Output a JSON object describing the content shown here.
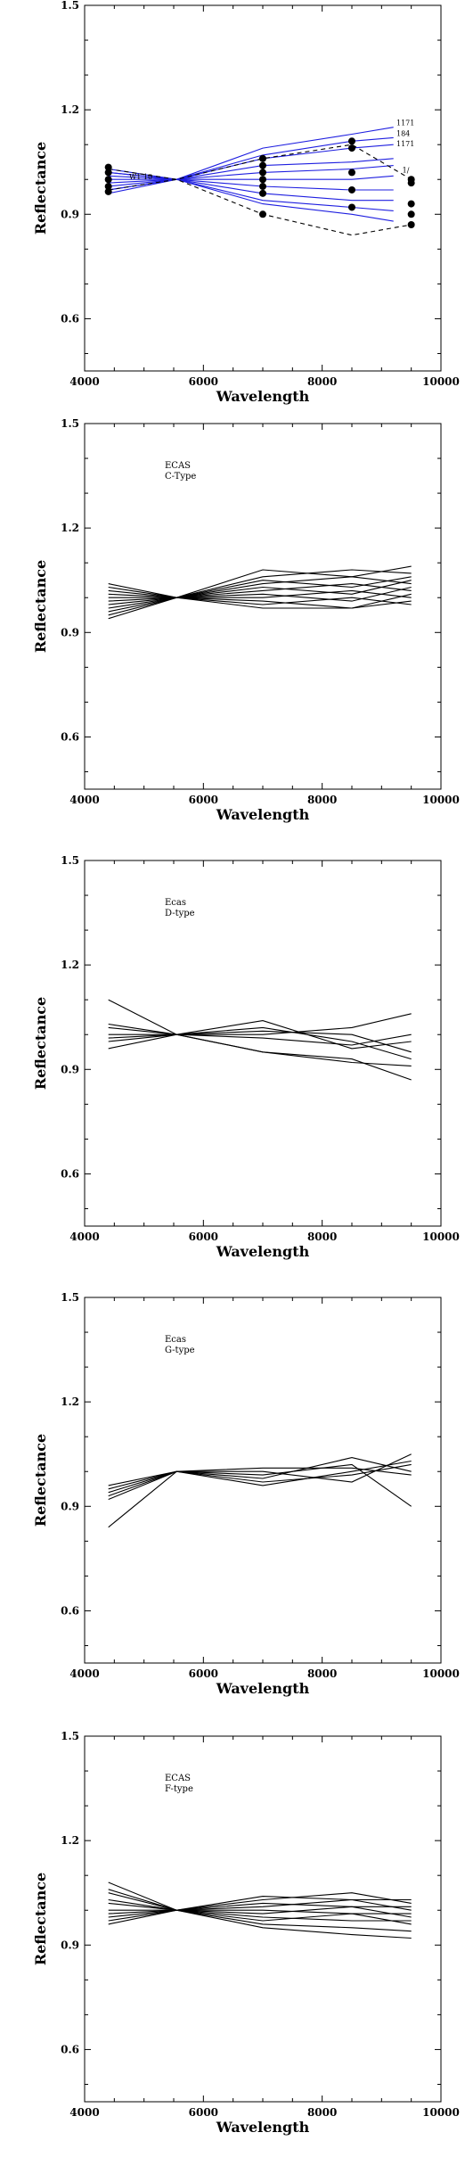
{
  "chart_data": [
    {
      "type": "line",
      "title": "",
      "xlabel": "Wavelength",
      "ylabel": "Reflectance",
      "xlim": [
        4000,
        10000
      ],
      "ylim": [
        0.45,
        1.5
      ],
      "xticks": [
        4000,
        6000,
        8000,
        10000
      ],
      "yticks": [
        0.6,
        0.9,
        1.2,
        1.5
      ],
      "ytick_labels": [
        "0.6",
        "0.9",
        "1.2",
        "1.5"
      ],
      "line_color": "#1f1fe0",
      "grid": false,
      "annotations": [
        {
          "text": "1171",
          "x": 9250,
          "y": 1.155
        },
        {
          "text": "184",
          "x": 9250,
          "y": 1.125
        },
        {
          "text": "1171",
          "x": 9250,
          "y": 1.095
        },
        {
          "text": "W1 10",
          "x": 4750,
          "y": 1.0
        },
        {
          "text": "1/",
          "x": 9350,
          "y": 1.02
        }
      ],
      "series": [
        {
          "x": [
            4400,
            5550,
            7000,
            8500,
            9200
          ],
          "values": [
            1.03,
            1.0,
            1.09,
            1.13,
            1.15
          ]
        },
        {
          "x": [
            4400,
            5550,
            7000,
            8500,
            9200
          ],
          "values": [
            1.02,
            1.0,
            1.07,
            1.11,
            1.12
          ]
        },
        {
          "x": [
            4400,
            5550,
            7000,
            8500,
            9200
          ],
          "values": [
            1.02,
            1.0,
            1.06,
            1.09,
            1.1
          ]
        },
        {
          "x": [
            4400,
            5550,
            7000,
            8500,
            9200
          ],
          "values": [
            1.01,
            1.0,
            1.04,
            1.05,
            1.06
          ]
        },
        {
          "x": [
            4400,
            5550,
            7000,
            8500,
            9200
          ],
          "values": [
            1.0,
            1.0,
            1.02,
            1.03,
            1.04
          ]
        },
        {
          "x": [
            4400,
            5550,
            7000,
            8500,
            9200
          ],
          "values": [
            0.99,
            1.0,
            1.0,
            1.0,
            1.01
          ]
        },
        {
          "x": [
            4400,
            5550,
            7000,
            8500,
            9200
          ],
          "values": [
            0.98,
            1.0,
            0.98,
            0.97,
            0.97
          ]
        },
        {
          "x": [
            4400,
            5550,
            7000,
            8500,
            9200
          ],
          "values": [
            0.97,
            1.0,
            0.96,
            0.94,
            0.94
          ]
        },
        {
          "x": [
            4400,
            5550,
            7000,
            8500,
            9200
          ],
          "values": [
            0.97,
            1.0,
            0.94,
            0.92,
            0.91
          ]
        },
        {
          "x": [
            4400,
            5550,
            7000,
            8500,
            9200
          ],
          "values": [
            0.96,
            1.0,
            0.93,
            0.9,
            0.88
          ]
        }
      ],
      "dashed_series": [
        {
          "x": [
            4400,
            5550,
            7000,
            8500,
            9500
          ],
          "values": [
            1.03,
            1.0,
            1.06,
            1.1,
            1.0
          ]
        },
        {
          "x": [
            4400,
            5550,
            7000,
            8500,
            9500
          ],
          "values": [
            0.97,
            1.0,
            0.9,
            0.84,
            0.87
          ]
        }
      ],
      "points": {
        "x": [
          4400,
          4400,
          4400,
          4400,
          4400,
          7000,
          7000,
          7000,
          7000,
          7000,
          7000,
          7000,
          8500,
          8500,
          8500,
          8500,
          8500,
          9500,
          9500,
          9500,
          9500,
          9500
        ],
        "values": [
          1.035,
          1.02,
          1.0,
          0.98,
          0.965,
          1.06,
          1.04,
          1.02,
          1.0,
          0.98,
          0.96,
          0.9,
          1.11,
          1.09,
          1.02,
          0.97,
          0.92,
          1.0,
          0.99,
          0.93,
          0.9,
          0.87
        ]
      }
    },
    {
      "type": "line",
      "title": "",
      "xlabel": "Wavelength",
      "ylabel": "Reflectance",
      "xlim": [
        4000,
        10000
      ],
      "ylim": [
        0.45,
        1.5
      ],
      "xticks": [
        4000,
        6000,
        8000,
        10000
      ],
      "yticks": [
        0.6,
        0.9,
        1.2,
        1.5
      ],
      "ytick_labels": [
        "0.6",
        "0.9",
        "1.2",
        "1.5"
      ],
      "line_color": "#000000",
      "grid": false,
      "label_lines": [
        "ECAS",
        "C-Type"
      ],
      "series": [
        {
          "x": [
            4400,
            5550,
            7000,
            8500,
            9500
          ],
          "values": [
            1.04,
            1.0,
            1.08,
            1.06,
            1.09
          ]
        },
        {
          "x": [
            4400,
            5550,
            7000,
            8500,
            9500
          ],
          "values": [
            1.03,
            1.0,
            1.06,
            1.08,
            1.07
          ]
        },
        {
          "x": [
            4400,
            5550,
            7000,
            8500,
            9500
          ],
          "values": [
            1.02,
            1.0,
            1.05,
            1.03,
            1.06
          ]
        },
        {
          "x": [
            4400,
            5550,
            7000,
            8500,
            9500
          ],
          "values": [
            1.01,
            1.0,
            1.04,
            1.06,
            1.04
          ]
        },
        {
          "x": [
            4400,
            5550,
            7000,
            8500,
            9500
          ],
          "values": [
            1.0,
            1.0,
            1.03,
            1.01,
            1.05
          ]
        },
        {
          "x": [
            4400,
            5550,
            7000,
            8500,
            9500
          ],
          "values": [
            0.99,
            1.0,
            1.02,
            1.04,
            1.02
          ]
        },
        {
          "x": [
            4400,
            5550,
            7000,
            8500,
            9500
          ],
          "values": [
            0.98,
            1.0,
            1.01,
            0.99,
            1.03
          ]
        },
        {
          "x": [
            4400,
            5550,
            7000,
            8500,
            9500
          ],
          "values": [
            0.97,
            1.0,
            1.0,
            1.02,
            1.0
          ]
        },
        {
          "x": [
            4400,
            5550,
            7000,
            8500,
            9500
          ],
          "values": [
            0.96,
            1.0,
            0.99,
            0.97,
            1.01
          ]
        },
        {
          "x": [
            4400,
            5550,
            7000,
            8500,
            9500
          ],
          "values": [
            0.95,
            1.0,
            0.98,
            1.0,
            0.98
          ]
        },
        {
          "x": [
            4400,
            5550,
            7000,
            8500,
            9500
          ],
          "values": [
            0.94,
            1.0,
            0.97,
            0.97,
            0.99
          ]
        }
      ]
    },
    {
      "type": "line",
      "title": "",
      "xlabel": "Wavelength",
      "ylabel": "Reflectance",
      "xlim": [
        4000,
        10000
      ],
      "ylim": [
        0.45,
        1.5
      ],
      "xticks": [
        4000,
        6000,
        8000,
        10000
      ],
      "yticks": [
        0.6,
        0.9,
        1.2,
        1.5
      ],
      "ytick_labels": [
        "0.6",
        "0.9",
        "1.2",
        "1.5"
      ],
      "line_color": "#000000",
      "grid": false,
      "label_lines": [
        "Ecas",
        "D-type"
      ],
      "series": [
        {
          "x": [
            4400,
            5550,
            7000,
            8500,
            9500
          ],
          "values": [
            1.1,
            1.0,
            0.95,
            0.93,
            0.87
          ]
        },
        {
          "x": [
            4400,
            5550,
            7000,
            8500,
            9500
          ],
          "values": [
            1.03,
            1.0,
            1.04,
            0.96,
            0.98
          ]
        },
        {
          "x": [
            4400,
            5550,
            7000,
            8500,
            9500
          ],
          "values": [
            1.0,
            1.0,
            1.02,
            0.98,
            0.93
          ]
        },
        {
          "x": [
            4400,
            5550,
            7000,
            8500,
            9500
          ],
          "values": [
            0.99,
            1.0,
            0.95,
            0.92,
            0.91
          ]
        },
        {
          "x": [
            4400,
            5550,
            7000,
            8500,
            9500
          ],
          "values": [
            0.96,
            1.0,
            1.0,
            1.02,
            1.06
          ]
        },
        {
          "x": [
            4400,
            5550,
            7000,
            8500,
            9500
          ],
          "values": [
            1.02,
            1.0,
            1.01,
            1.0,
            0.95
          ]
        },
        {
          "x": [
            4400,
            5550,
            7000,
            8500,
            9500
          ],
          "values": [
            0.98,
            1.0,
            0.99,
            0.97,
            1.0
          ]
        }
      ]
    },
    {
      "type": "line",
      "title": "",
      "xlabel": "Wavelength",
      "ylabel": "Reflectance",
      "xlim": [
        4000,
        10000
      ],
      "ylim": [
        0.45,
        1.5
      ],
      "xticks": [
        4000,
        6000,
        8000,
        10000
      ],
      "yticks": [
        0.6,
        0.9,
        1.2,
        1.5
      ],
      "ytick_labels": [
        "0.6",
        "0.9",
        "1.2",
        "1.5"
      ],
      "line_color": "#000000",
      "grid": false,
      "label_lines": [
        "Ecas",
        "G-type"
      ],
      "series": [
        {
          "x": [
            4400,
            5550,
            7000,
            8500,
            9500
          ],
          "values": [
            0.84,
            1.0,
            0.99,
            1.02,
            0.9
          ]
        },
        {
          "x": [
            4400,
            5550,
            7000,
            8500,
            9500
          ],
          "values": [
            0.92,
            1.0,
            0.96,
            1.0,
            1.03
          ]
        },
        {
          "x": [
            4400,
            5550,
            7000,
            8500,
            9500
          ],
          "values": [
            0.94,
            1.0,
            0.98,
            1.04,
            1.0
          ]
        },
        {
          "x": [
            4400,
            5550,
            7000,
            8500,
            9500
          ],
          "values": [
            0.95,
            1.0,
            1.0,
            0.97,
            1.05
          ]
        },
        {
          "x": [
            4400,
            5550,
            7000,
            8500,
            9500
          ],
          "values": [
            0.96,
            1.0,
            0.97,
            0.99,
            1.02
          ]
        },
        {
          "x": [
            4400,
            5550,
            7000,
            8500,
            9500
          ],
          "values": [
            0.93,
            1.0,
            1.01,
            1.01,
            0.99
          ]
        }
      ]
    },
    {
      "type": "line",
      "title": "",
      "xlabel": "Wavelength",
      "ylabel": "Reflectance",
      "xlim": [
        4000,
        10000
      ],
      "ylim": [
        0.45,
        1.5
      ],
      "xticks": [
        4000,
        6000,
        8000,
        10000
      ],
      "yticks": [
        0.6,
        0.9,
        1.2,
        1.5
      ],
      "ytick_labels": [
        "0.6",
        "0.9",
        "1.2",
        "1.5"
      ],
      "line_color": "#000000",
      "grid": false,
      "label_lines": [
        "ECAS",
        "F-type"
      ],
      "series": [
        {
          "x": [
            4400,
            5550,
            7000,
            8500,
            9500
          ],
          "values": [
            1.08,
            1.0,
            1.04,
            1.03,
            1.03
          ]
        },
        {
          "x": [
            4400,
            5550,
            7000,
            8500,
            9500
          ],
          "values": [
            1.06,
            1.0,
            1.03,
            1.05,
            1.02
          ]
        },
        {
          "x": [
            4400,
            5550,
            7000,
            8500,
            9500
          ],
          "values": [
            1.05,
            1.0,
            1.02,
            1.01,
            1.01
          ]
        },
        {
          "x": [
            4400,
            5550,
            7000,
            8500,
            9500
          ],
          "values": [
            1.03,
            1.0,
            1.01,
            1.03,
            1.0
          ]
        },
        {
          "x": [
            4400,
            5550,
            7000,
            8500,
            9500
          ],
          "values": [
            1.02,
            1.0,
            1.0,
            0.99,
            0.99
          ]
        },
        {
          "x": [
            4400,
            5550,
            7000,
            8500,
            9500
          ],
          "values": [
            1.0,
            1.0,
            0.99,
            1.01,
            0.98
          ]
        },
        {
          "x": [
            4400,
            5550,
            7000,
            8500,
            9500
          ],
          "values": [
            0.99,
            1.0,
            0.98,
            0.97,
            0.97
          ]
        },
        {
          "x": [
            4400,
            5550,
            7000,
            8500,
            9500
          ],
          "values": [
            0.98,
            1.0,
            0.97,
            0.99,
            0.96
          ]
        },
        {
          "x": [
            4400,
            5550,
            7000,
            8500,
            9500
          ],
          "values": [
            0.97,
            1.0,
            0.96,
            0.95,
            0.94
          ]
        },
        {
          "x": [
            4400,
            5550,
            7000,
            8500,
            9500
          ],
          "values": [
            0.96,
            1.0,
            0.95,
            0.93,
            0.92
          ]
        }
      ]
    }
  ]
}
